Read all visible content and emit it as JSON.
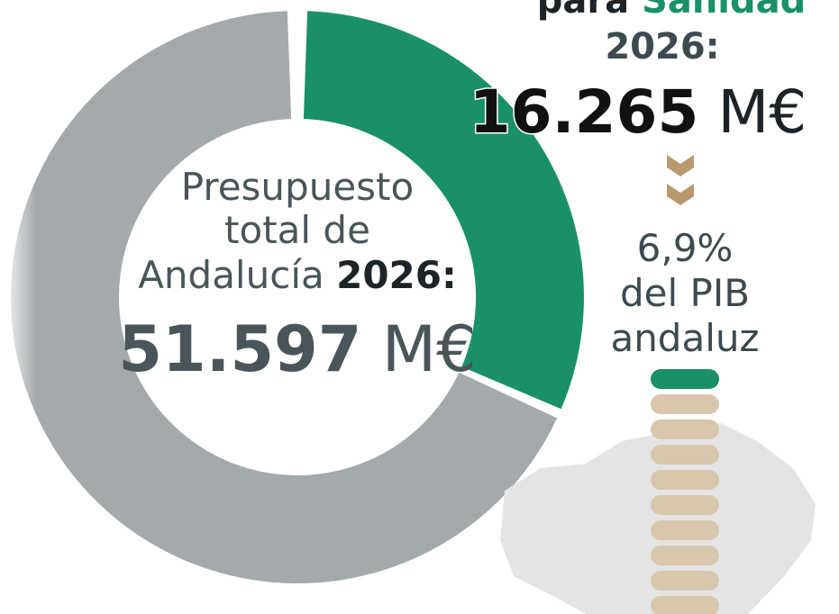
{
  "center": {
    "lines": [
      "Presupuesto",
      "total de",
      "Andalucía"
    ],
    "year": "2026:",
    "amount": "51.597",
    "unit": "M€"
  },
  "right": {
    "lead": "para",
    "highlight": "Sanidad",
    "year": "2026:",
    "amount": "16.265",
    "unit": "M€",
    "share": "6,9%",
    "share_lines": [
      "del PIB",
      "andaluz"
    ]
  }
}
